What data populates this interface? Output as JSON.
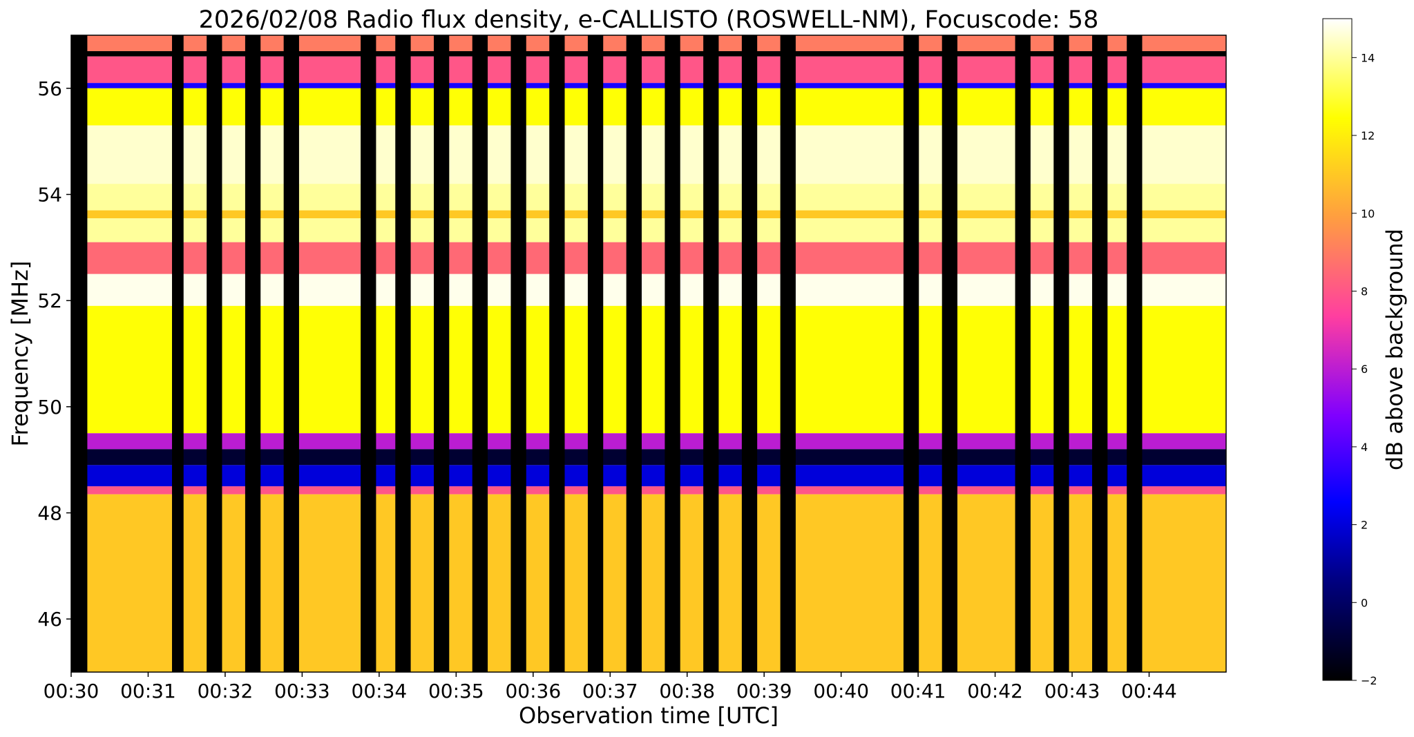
{
  "chart_data": {
    "type": "heatmap",
    "title": "2026/02/08  Radio flux density, e-CALLISTO (ROSWELL-NM), Focuscode: 58",
    "xlabel": "Observation time [UTC]",
    "ylabel": "Frequency [MHz]",
    "colorbar_label": "dB above background",
    "colormap": "gnuplot2",
    "color_range": [
      -2,
      15
    ],
    "colorbar_ticks": [
      "-2",
      "0",
      "2",
      "4",
      "6",
      "8",
      "10",
      "12",
      "14"
    ],
    "x_range_minutes": [
      0,
      15
    ],
    "x_ticks": [
      "00:30",
      "00:31",
      "00:32",
      "00:33",
      "00:34",
      "00:35",
      "00:36",
      "00:37",
      "00:38",
      "00:39",
      "00:40",
      "00:41",
      "00:42",
      "00:43",
      "00:44"
    ],
    "y_range_mhz": [
      45,
      57
    ],
    "y_ticks": [
      "46",
      "48",
      "50",
      "52",
      "54",
      "56"
    ],
    "data_gaps_minutes": [
      [
        0.0,
        0.21
      ],
      [
        1.31,
        1.46
      ],
      [
        1.76,
        1.96
      ],
      [
        2.26,
        2.46
      ],
      [
        2.76,
        2.96
      ],
      [
        3.76,
        3.96
      ],
      [
        4.21,
        4.41
      ],
      [
        4.71,
        4.91
      ],
      [
        5.21,
        5.41
      ],
      [
        5.71,
        5.91
      ],
      [
        6.21,
        6.41
      ],
      [
        6.71,
        6.91
      ],
      [
        7.21,
        7.41
      ],
      [
        7.71,
        7.91
      ],
      [
        8.21,
        8.41
      ],
      [
        8.71,
        8.91
      ],
      [
        9.21,
        9.41
      ],
      [
        10.81,
        11.01
      ],
      [
        11.31,
        11.51
      ],
      [
        12.26,
        12.46
      ],
      [
        12.76,
        12.96
      ],
      [
        13.26,
        13.46
      ],
      [
        13.71,
        13.91
      ]
    ],
    "frequency_bands_db": [
      {
        "from": 56.7,
        "to": 57.0,
        "db": 9
      },
      {
        "from": 56.6,
        "to": 56.7,
        "db": -2
      },
      {
        "from": 56.1,
        "to": 56.6,
        "db": 8
      },
      {
        "from": 56.0,
        "to": 56.1,
        "db": 3
      },
      {
        "from": 55.3,
        "to": 56.0,
        "db": 12.5
      },
      {
        "from": 54.2,
        "to": 55.3,
        "db": 14.5
      },
      {
        "from": 53.7,
        "to": 54.2,
        "db": 14
      },
      {
        "from": 53.55,
        "to": 53.7,
        "db": 11
      },
      {
        "from": 53.1,
        "to": 53.55,
        "db": 14
      },
      {
        "from": 52.5,
        "to": 53.1,
        "db": 8.5
      },
      {
        "from": 51.9,
        "to": 52.5,
        "db": 14.8
      },
      {
        "from": 49.5,
        "to": 51.9,
        "db": 12.5
      },
      {
        "from": 49.2,
        "to": 49.5,
        "db": 6
      },
      {
        "from": 48.9,
        "to": 49.2,
        "db": -1
      },
      {
        "from": 48.5,
        "to": 48.9,
        "db": 2
      },
      {
        "from": 48.35,
        "to": 48.5,
        "db": 8
      },
      {
        "from": 45.0,
        "to": 48.35,
        "db": 11
      }
    ]
  }
}
